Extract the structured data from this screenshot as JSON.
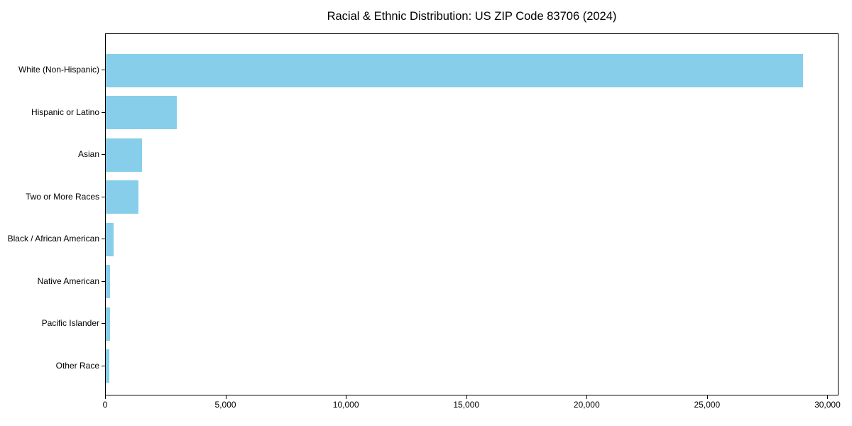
{
  "chart_data": {
    "type": "bar",
    "orientation": "horizontal",
    "title": "Racial & Ethnic Distribution: US ZIP Code 83706 (2024)",
    "categories": [
      "White (Non-Hispanic)",
      "Hispanic or Latino",
      "Asian",
      "Two or More Races",
      "Black / African American",
      "Native American",
      "Pacific Islander",
      "Other Race"
    ],
    "values": [
      28950,
      2950,
      1500,
      1350,
      325,
      175,
      190,
      145
    ],
    "xlabel": "",
    "ylabel": "",
    "xlim": [
      0,
      30400
    ],
    "x_ticks": [
      {
        "value": 0,
        "label": "0"
      },
      {
        "value": 5000,
        "label": "5,000"
      },
      {
        "value": 10000,
        "label": "10,000"
      },
      {
        "value": 15000,
        "label": "15,000"
      },
      {
        "value": 20000,
        "label": "20,000"
      },
      {
        "value": 25000,
        "label": "25,000"
      },
      {
        "value": 30000,
        "label": "30,000"
      }
    ],
    "bar_color": "#87CEEB",
    "axis_color": "#000000",
    "text_color": "#000000",
    "grid": false,
    "legend": null
  }
}
